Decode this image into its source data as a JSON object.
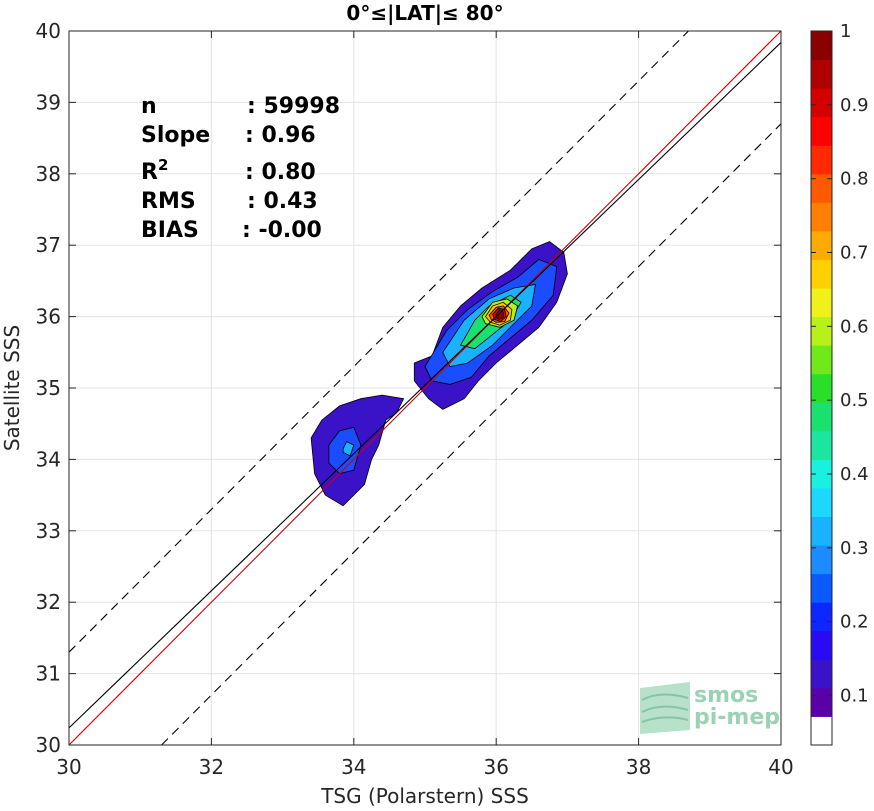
{
  "chart_data": {
    "type": "heatmap",
    "title": "0°≤|LAT|≤ 80°",
    "xlabel": "TSG (Polarstern) SSS",
    "ylabel": "Satellite SSS",
    "xlim": [
      30,
      40
    ],
    "ylim": [
      30,
      40
    ],
    "x_ticks": [
      30,
      32,
      34,
      36,
      38,
      40
    ],
    "y_ticks": [
      30,
      31,
      32,
      33,
      34,
      35,
      36,
      37,
      38,
      39,
      40
    ],
    "grid": true,
    "stats": [
      {
        "label": "n",
        "value": ": 59998"
      },
      {
        "label": "Slope",
        "value": ": 0.96"
      },
      {
        "label": "R",
        "sup": "2",
        "value": ": 0.80"
      },
      {
        "label": "RMS",
        "value": ": 0.43"
      },
      {
        "label": "BIAS",
        "value": ": -0.00"
      }
    ],
    "lines": [
      {
        "kind": "identity",
        "color": "#cc0000",
        "style": "solid",
        "offset": 0
      },
      {
        "kind": "regression",
        "color": "#000000",
        "style": "solid",
        "slope": 0.96,
        "intercept": 1.44
      },
      {
        "kind": "identity_plus",
        "color": "#000000",
        "style": "dashed",
        "offset": 1.3
      },
      {
        "kind": "identity_minus",
        "color": "#000000",
        "style": "dashed",
        "offset": -1.3
      }
    ],
    "density_contours": [
      {
        "level": 0.05,
        "color": "#3a12c8",
        "polygon": [
          [
            33.4,
            34.3
          ],
          [
            33.55,
            34.55
          ],
          [
            33.8,
            34.75
          ],
          [
            34.1,
            34.85
          ],
          [
            34.4,
            34.9
          ],
          [
            34.7,
            34.85
          ],
          [
            34.6,
            34.65
          ],
          [
            34.45,
            34.55
          ],
          [
            34.35,
            34.2
          ],
          [
            34.25,
            34.0
          ],
          [
            34.15,
            33.65
          ],
          [
            33.85,
            33.35
          ],
          [
            33.6,
            33.5
          ],
          [
            33.45,
            33.8
          ]
        ]
      },
      {
        "level": 0.05,
        "color": "#3a12c8",
        "polygon": [
          [
            34.85,
            35.35
          ],
          [
            35.1,
            35.45
          ],
          [
            35.25,
            35.85
          ],
          [
            35.5,
            36.15
          ],
          [
            35.8,
            36.4
          ],
          [
            36.2,
            36.65
          ],
          [
            36.5,
            36.95
          ],
          [
            36.75,
            37.05
          ],
          [
            36.95,
            36.9
          ],
          [
            37.0,
            36.6
          ],
          [
            36.85,
            36.2
          ],
          [
            36.6,
            35.85
          ],
          [
            36.3,
            35.6
          ],
          [
            36.0,
            35.35
          ],
          [
            35.75,
            35.1
          ],
          [
            35.55,
            34.85
          ],
          [
            35.25,
            34.7
          ],
          [
            35.05,
            34.85
          ],
          [
            34.85,
            35.1
          ]
        ]
      },
      {
        "level": 0.2,
        "color": "#1a4dff",
        "polygon": [
          [
            33.65,
            34.2
          ],
          [
            33.8,
            34.4
          ],
          [
            34.0,
            34.45
          ],
          [
            34.1,
            34.2
          ],
          [
            34.0,
            33.85
          ],
          [
            33.8,
            33.8
          ],
          [
            33.65,
            33.95
          ]
        ]
      },
      {
        "level": 0.2,
        "color": "#1a4dff",
        "polygon": [
          [
            35.0,
            35.3
          ],
          [
            35.3,
            35.8
          ],
          [
            35.6,
            36.1
          ],
          [
            35.95,
            36.35
          ],
          [
            36.3,
            36.55
          ],
          [
            36.6,
            36.8
          ],
          [
            36.85,
            36.7
          ],
          [
            36.8,
            36.3
          ],
          [
            36.5,
            35.95
          ],
          [
            36.2,
            35.7
          ],
          [
            35.9,
            35.45
          ],
          [
            35.65,
            35.15
          ],
          [
            35.35,
            35.05
          ],
          [
            35.1,
            35.1
          ]
        ]
      },
      {
        "level": 0.35,
        "color": "#1ab2ff",
        "polygon": [
          [
            33.85,
            34.15
          ],
          [
            33.9,
            34.25
          ],
          [
            34.0,
            34.2
          ],
          [
            33.95,
            34.05
          ],
          [
            33.85,
            34.1
          ]
        ]
      },
      {
        "level": 0.35,
        "color": "#1ab2ff",
        "polygon": [
          [
            35.25,
            35.5
          ],
          [
            35.55,
            35.95
          ],
          [
            35.9,
            36.25
          ],
          [
            36.25,
            36.4
          ],
          [
            36.55,
            36.45
          ],
          [
            36.5,
            36.15
          ],
          [
            36.25,
            35.9
          ],
          [
            35.95,
            35.6
          ],
          [
            35.6,
            35.35
          ],
          [
            35.35,
            35.3
          ]
        ]
      },
      {
        "level": 0.5,
        "color": "#1ae070",
        "polygon": [
          [
            35.5,
            35.6
          ],
          [
            35.7,
            35.95
          ],
          [
            35.9,
            36.15
          ],
          [
            36.2,
            36.3
          ],
          [
            36.35,
            36.2
          ],
          [
            36.2,
            35.95
          ],
          [
            35.95,
            35.75
          ],
          [
            35.7,
            35.55
          ]
        ]
      },
      {
        "level": 0.6,
        "color": "#b8f01a",
        "polygon": [
          [
            35.8,
            36.0
          ],
          [
            35.95,
            36.2
          ],
          [
            36.15,
            36.25
          ],
          [
            36.3,
            36.15
          ],
          [
            36.25,
            35.95
          ],
          [
            36.05,
            35.85
          ],
          [
            35.85,
            35.9
          ]
        ]
      },
      {
        "level": 0.7,
        "color": "#ffc400",
        "polygon": [
          [
            35.85,
            36.0
          ],
          [
            35.95,
            36.15
          ],
          [
            36.1,
            36.2
          ],
          [
            36.22,
            36.1
          ],
          [
            36.2,
            35.95
          ],
          [
            36.05,
            35.88
          ],
          [
            35.92,
            35.92
          ]
        ]
      },
      {
        "level": 0.8,
        "color": "#ff5a00",
        "polygon": [
          [
            35.9,
            36.02
          ],
          [
            36.0,
            36.13
          ],
          [
            36.1,
            36.15
          ],
          [
            36.18,
            36.05
          ],
          [
            36.12,
            35.93
          ],
          [
            36.0,
            35.92
          ],
          [
            35.93,
            35.96
          ]
        ]
      },
      {
        "level": 0.9,
        "color": "#e00000",
        "polygon": [
          [
            35.95,
            36.03
          ],
          [
            36.03,
            36.12
          ],
          [
            36.12,
            36.1
          ],
          [
            36.14,
            36.0
          ],
          [
            36.06,
            35.93
          ],
          [
            35.98,
            35.96
          ]
        ]
      },
      {
        "level": 1.0,
        "color": "#8b0000",
        "polygon": [
          [
            36.0,
            36.04
          ],
          [
            36.05,
            36.1
          ],
          [
            36.1,
            36.06
          ],
          [
            36.1,
            35.99
          ],
          [
            36.04,
            35.96
          ],
          [
            36.0,
            35.99
          ]
        ]
      }
    ],
    "colorbar": {
      "ticks": [
        0.1,
        0.2,
        0.3,
        0.4,
        0.5,
        0.6,
        0.7,
        0.8,
        0.9,
        1
      ],
      "tick_labels": [
        "0.1",
        "0.2",
        "0.3",
        "0.4",
        "0.5",
        "0.6",
        "0.7",
        "0.8",
        "0.9",
        "1"
      ],
      "range": [
        0.033,
        1.0
      ],
      "colors": [
        "#ffffff",
        "#5a00a8",
        "#3a12c8",
        "#2a0af0",
        "#0a28ff",
        "#0a5aff",
        "#1a8cff",
        "#1ab2ff",
        "#1ad8ff",
        "#1af0e0",
        "#1ae6a0",
        "#1ae070",
        "#28e028",
        "#70e81a",
        "#b8f01a",
        "#f0f01a",
        "#ffd000",
        "#ffaa00",
        "#ff8000",
        "#ff5a00",
        "#ff2a00",
        "#ff0000",
        "#d40000",
        "#b00000",
        "#8b0000"
      ]
    }
  },
  "logo": {
    "line1": "smos",
    "line2": "pi-mep"
  }
}
